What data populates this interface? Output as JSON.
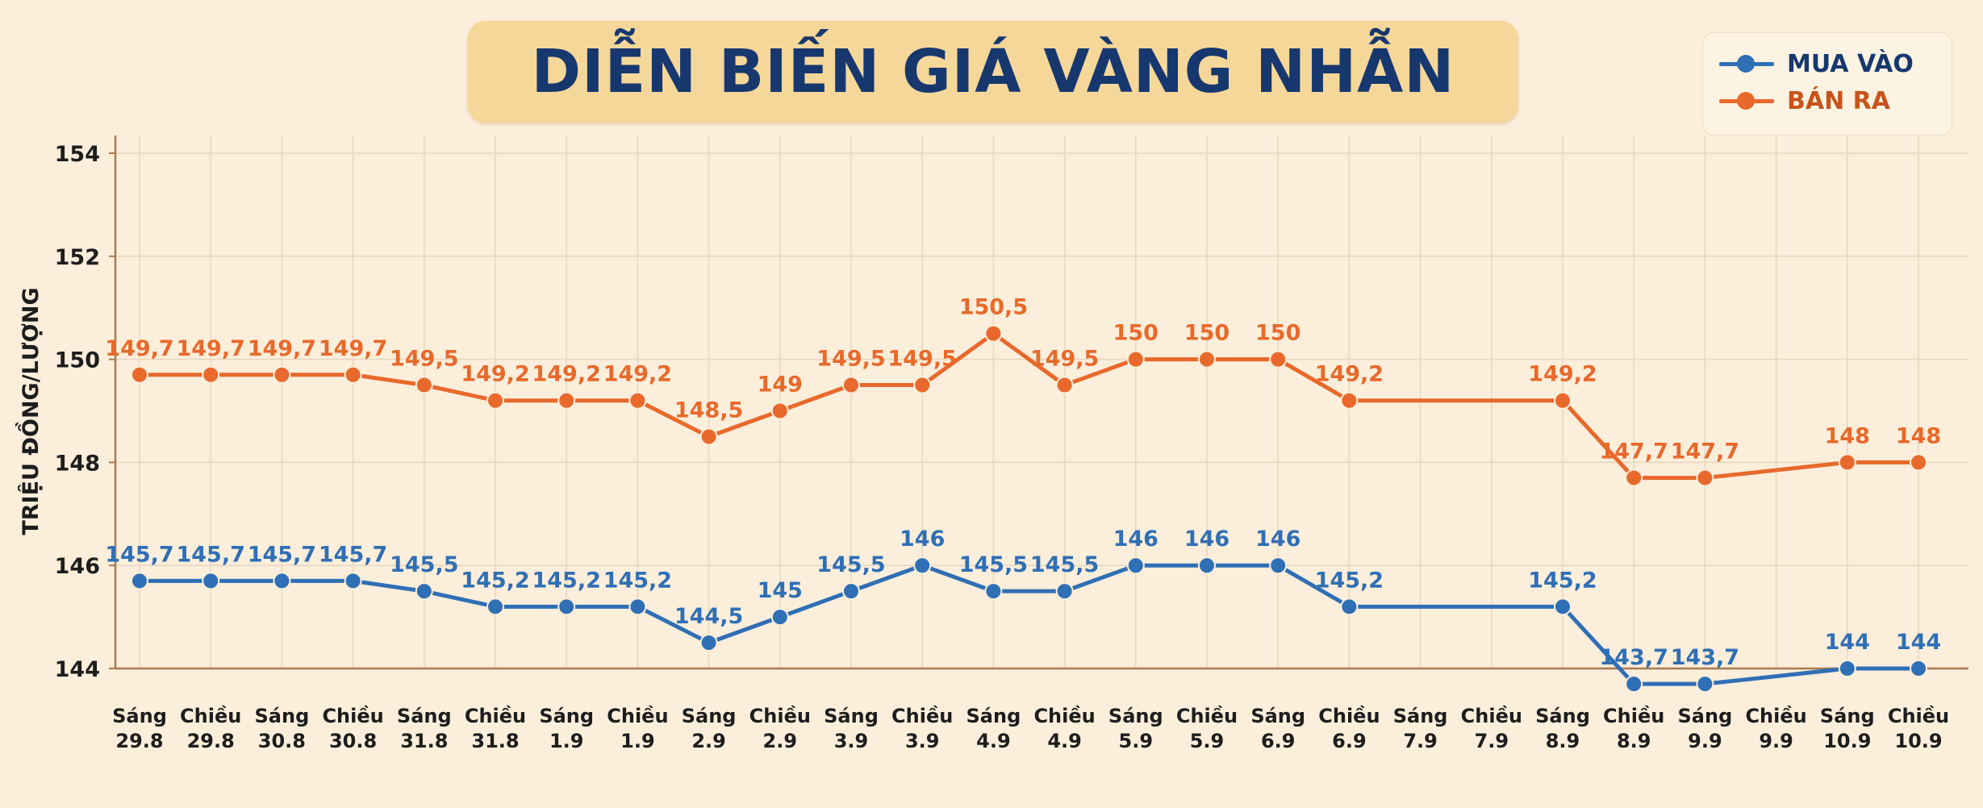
{
  "title": "DIỄN BIẾN GIÁ VÀNG NHẪN",
  "legend": {
    "buy": "MUA VÀO",
    "sell": "BÁN RA"
  },
  "colors": {
    "buy": "#2f6fb5",
    "sell": "#e8692b",
    "grid": "#e7d6bd",
    "axis": "#a97b4f",
    "title": "#17386e"
  },
  "chart_data": {
    "type": "line",
    "title": "DIỄN BIẾN GIÁ VÀNG NHẪN",
    "ylabel": "TRIỆU ĐỒNG/LƯỢNG",
    "xlabel": "",
    "ylim": [
      144,
      154
    ],
    "yticks": [
      144,
      146,
      148,
      150,
      152,
      154
    ],
    "grid": true,
    "legend_position": "top-right",
    "categories": [
      [
        "Sáng",
        "29.8"
      ],
      [
        "Chiều",
        "29.8"
      ],
      [
        "Sáng",
        "30.8"
      ],
      [
        "Chiều",
        "30.8"
      ],
      [
        "Sáng",
        "31.8"
      ],
      [
        "Chiều",
        "31.8"
      ],
      [
        "Sáng",
        "1.9"
      ],
      [
        "Chiều",
        "1.9"
      ],
      [
        "Sáng",
        "2.9"
      ],
      [
        "Chiều",
        "2.9"
      ],
      [
        "Sáng",
        "3.9"
      ],
      [
        "Chiều",
        "3.9"
      ],
      [
        "Sáng",
        "4.9"
      ],
      [
        "Chiều",
        "4.9"
      ],
      [
        "Sáng",
        "5.9"
      ],
      [
        "Chiều",
        "5.9"
      ],
      [
        "Sáng",
        "6.9"
      ],
      [
        "Chiều",
        "6.9"
      ],
      [
        "Sáng",
        "7.9"
      ],
      [
        "Chiều",
        "7.9"
      ],
      [
        "Sáng",
        "8.9"
      ],
      [
        "Chiều",
        "8.9"
      ],
      [
        "Sáng",
        "9.9"
      ],
      [
        "Chiều",
        "9.9"
      ],
      [
        "Sáng",
        "10.9"
      ],
      [
        "Chiều",
        "10.9"
      ]
    ],
    "series": [
      {
        "name": "MUA VÀO",
        "key": "buy",
        "x": [
          0,
          1,
          2,
          3,
          4,
          5,
          6,
          7,
          8,
          9,
          10,
          11,
          12,
          13,
          14,
          15,
          16,
          17,
          20,
          21,
          22,
          24,
          25
        ],
        "values": [
          145.7,
          145.7,
          145.7,
          145.7,
          145.5,
          145.2,
          145.2,
          145.2,
          144.5,
          145,
          145.5,
          146,
          145.5,
          145.5,
          146,
          146,
          146,
          145.2,
          145.2,
          143.7,
          143.7,
          144,
          144
        ],
        "labels": [
          "145,7",
          "145,7",
          "145,7",
          "145,7",
          "145,5",
          "145,2",
          "145,2",
          "145,2",
          "144,5",
          "145",
          "145,5",
          "146",
          "145,5",
          "145,5",
          "146",
          "146",
          "146",
          "145,2",
          "145,2",
          "143,7",
          "143,7",
          "144",
          "144"
        ]
      },
      {
        "name": "BÁN RA",
        "key": "sell",
        "x": [
          0,
          1,
          2,
          3,
          4,
          5,
          6,
          7,
          8,
          9,
          10,
          11,
          12,
          13,
          14,
          15,
          16,
          17,
          20,
          21,
          22,
          24,
          25
        ],
        "values": [
          149.7,
          149.7,
          149.7,
          149.7,
          149.5,
          149.2,
          149.2,
          149.2,
          148.5,
          149,
          149.5,
          149.5,
          150.5,
          149.5,
          150,
          150,
          150,
          149.2,
          149.2,
          147.7,
          147.7,
          148,
          148
        ],
        "labels": [
          "149,7",
          "149,7",
          "149,7",
          "149,7",
          "149,5",
          "149,2",
          "149,2",
          "149,2",
          "148,5",
          "149",
          "149,5",
          "149,5",
          "150,5",
          "149,5",
          "150",
          "150",
          "150",
          "149,2",
          "149,2",
          "147,7",
          "147,7",
          "148",
          "148"
        ]
      }
    ]
  }
}
